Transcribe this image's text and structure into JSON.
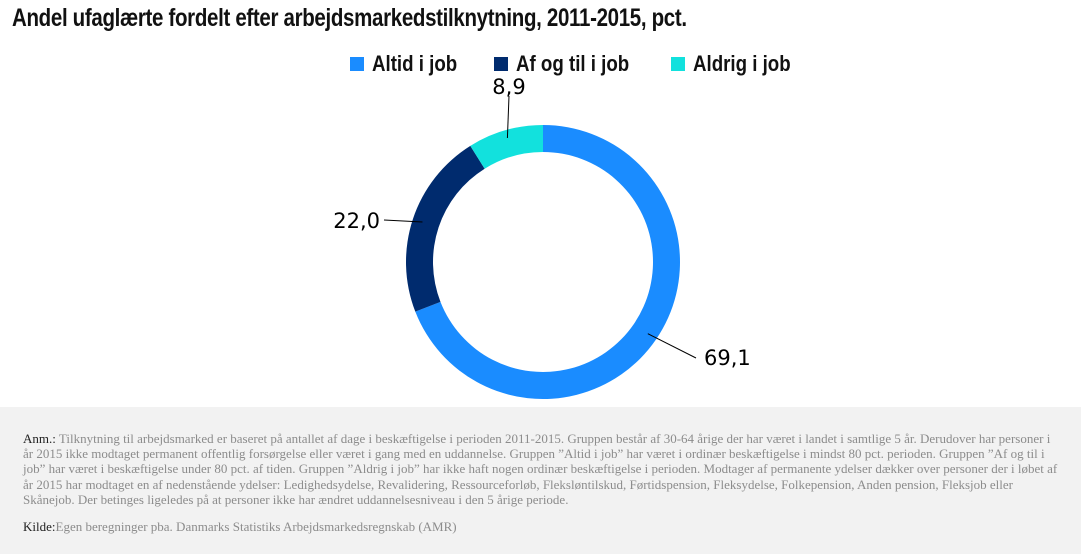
{
  "chart_data": {
    "type": "donut",
    "title": "Andel ufaglærte fordelt efter arbejdsmarkedstilknytning, 2011-2015, pct.",
    "categories": [
      "Altid i job",
      "Af og til i job",
      "Aldrig i job"
    ],
    "values": [
      69.1,
      22.0,
      8.9
    ],
    "value_labels": [
      "69,1",
      "22,0",
      "8,9"
    ],
    "colors": [
      "#1a8cff",
      "#002b6e",
      "#12e1dd"
    ],
    "legend_position": "top"
  },
  "notes": {
    "anm_label": "Anm.:",
    "anm_text": " Tilknytning til arbejdsmarked er baseret på antallet af dage i beskæftigelse i perioden 2011-2015. Gruppen består af 30-64 årige der har været i landet i samtlige 5 år. Derudover har personer i år 2015 ikke modtaget permanent offentlig forsørgelse eller været i gang med en uddannelse. Gruppen ”Altid i job” har været i ordinær beskæftigelse i mindst 80 pct. perioden. Gruppen ”Af og til i job” har været i beskæftigelse under 80 pct. af tiden. Gruppen ”Aldrig i job” har ikke haft nogen ordinær beskæftigelse i perioden.  Modtager af permanente ydelser dækker over personer der i løbet af år 2015 har modtaget en af nedenstående ydelser: Ledighedsydelse, Revalidering, Ressourceforløb, Fleksløntilskud, Førtidspension, Fleksydelse, Folkepension, Anden pension, Fleksjob eller Skånejob. Der betinges ligeledes på at personer ikke har ændret uddannelsesniveau i den 5 årige periode.",
    "source_label": "Kilde:",
    "source_text": "Egen beregninger pba. Danmarks Statistiks Arbejdsmarkedsregnskab (AMR)"
  }
}
